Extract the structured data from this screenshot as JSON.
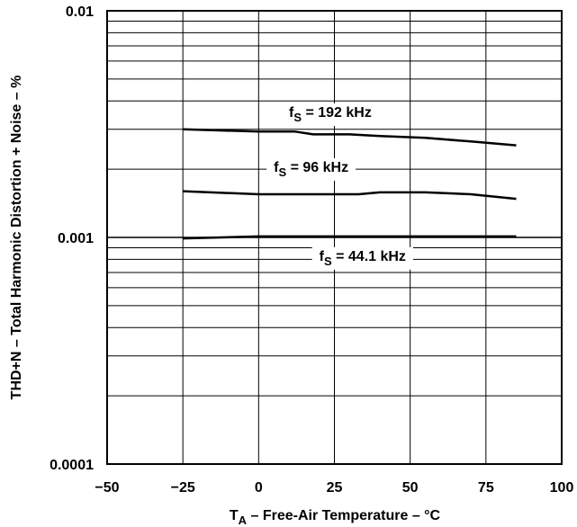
{
  "chart_data": {
    "type": "line",
    "xlabel": {
      "prefix": "T",
      "sub": "A",
      "suffix": " – Free-Air Temperature – °C"
    },
    "ylabel": "THD+N – Total Harmonic Distortion + Noise – %",
    "xlim": [
      -50,
      100
    ],
    "ylim": [
      0.0001,
      0.01
    ],
    "yscale": "log",
    "grid": true,
    "x_ticks": [
      -50,
      -25,
      0,
      25,
      50,
      75,
      100
    ],
    "x_tick_labels": [
      "−50",
      "−25",
      "0",
      "25",
      "50",
      "75",
      "100"
    ],
    "y_ticks": [
      0.0001,
      0.001,
      0.01
    ],
    "y_tick_labels": [
      "0.0001",
      "0.001",
      "0.01"
    ],
    "series": [
      {
        "label": {
          "prefix": "f",
          "sub": "S",
          "suffix": " = 192 kHz"
        },
        "label_anchor": [
          10,
          0.0034
        ],
        "x": [
          -25,
          0,
          12,
          18,
          30,
          40,
          55,
          70,
          85
        ],
        "y": [
          0.003,
          0.00293,
          0.00293,
          0.00285,
          0.00285,
          0.0028,
          0.00275,
          0.00265,
          0.00255
        ]
      },
      {
        "label": {
          "prefix": "f",
          "sub": "S",
          "suffix": " = 96 kHz"
        },
        "label_anchor": [
          5,
          0.00195
        ],
        "x": [
          -25,
          0,
          16,
          33,
          40,
          55,
          70,
          85
        ],
        "y": [
          0.0016,
          0.00155,
          0.00155,
          0.00155,
          0.00158,
          0.00158,
          0.00155,
          0.00148
        ]
      },
      {
        "label": {
          "prefix": "f",
          "sub": "S",
          "suffix": " = 44.1 kHz"
        },
        "label_anchor": [
          20,
          0.00079
        ],
        "x": [
          -25,
          0,
          85
        ],
        "y": [
          0.00099,
          0.00101,
          0.00101
        ]
      }
    ]
  }
}
